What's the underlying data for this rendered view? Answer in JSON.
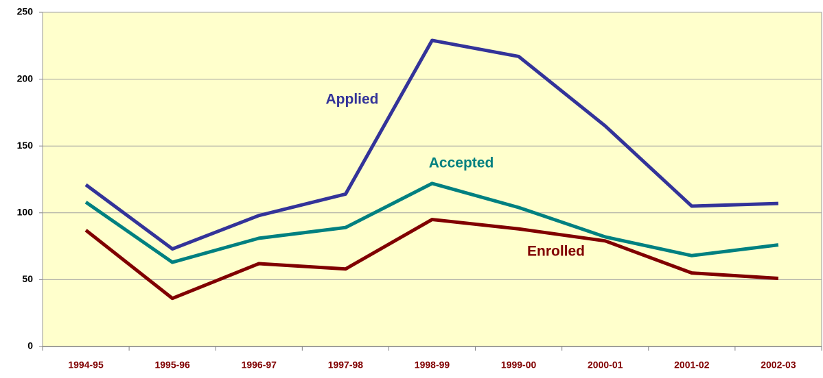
{
  "chart_data": {
    "type": "line",
    "categories": [
      "1994-95",
      "1995-96",
      "1996-97",
      "1997-98",
      "1998-99",
      "1999-00",
      "2000-01",
      "2001-02",
      "2002-03"
    ],
    "series": [
      {
        "name": "Applied",
        "color": "#333399",
        "values": [
          121,
          73,
          98,
          114,
          229,
          217,
          165,
          105,
          107
        ]
      },
      {
        "name": "Accepted",
        "color": "#008080",
        "values": [
          108,
          63,
          81,
          89,
          122,
          104,
          82,
          68,
          76
        ]
      },
      {
        "name": "Enrolled",
        "color": "#800000",
        "values": [
          87,
          36,
          62,
          58,
          95,
          88,
          79,
          55,
          51
        ]
      }
    ],
    "ylim": [
      0,
      250
    ],
    "yticks": [
      0,
      50,
      100,
      150,
      200,
      250
    ],
    "grid": true
  }
}
